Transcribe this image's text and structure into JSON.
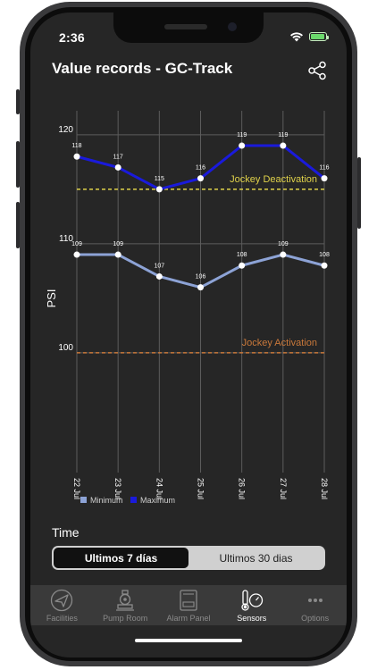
{
  "status_bar": {
    "time": "2:36"
  },
  "header": {
    "title": "Value records - GC-Track",
    "share_icon": "share-icon"
  },
  "chart_data": {
    "type": "line",
    "ylabel": "PSI",
    "ylim": [
      100,
      122
    ],
    "y_ticks": [
      100,
      110,
      120
    ],
    "categories": [
      "22 Jul",
      "23 Jul",
      "24 Jul",
      "25 Jul",
      "26 Jul",
      "27 Jul",
      "28 Jul"
    ],
    "series": [
      {
        "name": "Minimum",
        "color": "#8da3d6",
        "values": [
          109,
          109,
          107,
          106,
          108,
          109,
          108
        ]
      },
      {
        "name": "Maximum",
        "color": "#1a1adb",
        "values": [
          118,
          117,
          115,
          116,
          119,
          119,
          116
        ]
      }
    ],
    "reference_lines": [
      {
        "label": "Jockey Deactivation",
        "value": 115,
        "color": "#e0d24a"
      },
      {
        "label": "Jockey Activation",
        "value": 100,
        "color": "#c9783a"
      }
    ],
    "legend": {
      "placement": "bottom-left",
      "items": [
        "Minimum",
        "Maximum"
      ]
    }
  },
  "controls": {
    "time_label": "Time",
    "segments": [
      {
        "label": "Ultimos 7 días",
        "active": true
      },
      {
        "label": "Ultimos 30 dias",
        "active": false
      }
    ]
  },
  "tabbar": {
    "items": [
      {
        "label": "Facilities",
        "icon": "paper-plane-icon",
        "active": false
      },
      {
        "label": "Pump Room",
        "icon": "pump-icon",
        "active": false
      },
      {
        "label": "Alarm Panel",
        "icon": "alarm-panel-icon",
        "active": false
      },
      {
        "label": "Sensors",
        "icon": "thermometer-gauge-icon",
        "active": true
      },
      {
        "label": "Options",
        "icon": "more-dots-icon",
        "active": false
      }
    ]
  }
}
